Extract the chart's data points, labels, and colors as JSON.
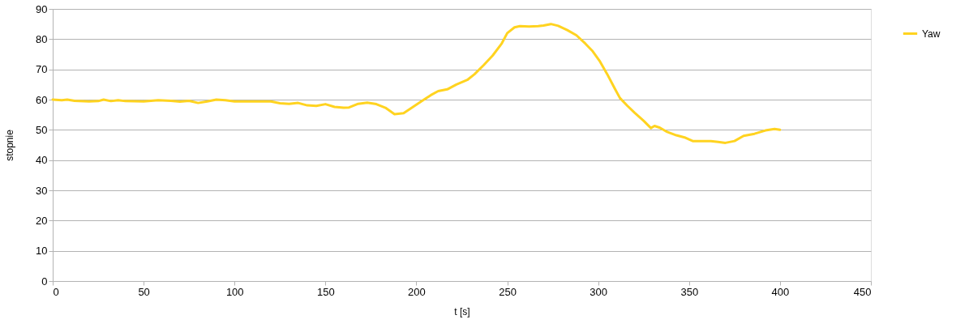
{
  "chart_data": {
    "type": "line",
    "xlabel": "t [s]",
    "ylabel": "stopnie",
    "xlim": [
      0,
      450
    ],
    "xticks": [
      0,
      50,
      100,
      150,
      200,
      250,
      300,
      350,
      400,
      450
    ],
    "ylim": [
      0,
      90
    ],
    "yticks": [
      0,
      10,
      20,
      30,
      40,
      50,
      60,
      70,
      80,
      90
    ],
    "grid": "y",
    "legend": "right",
    "marker": "none",
    "line_style": "solid",
    "x": [
      0,
      5,
      8,
      12,
      20,
      25,
      28,
      32,
      36,
      40,
      50,
      58,
      65,
      70,
      75,
      80,
      85,
      90,
      95,
      100,
      110,
      120,
      125,
      130,
      135,
      140,
      145,
      150,
      155,
      160,
      163,
      168,
      173,
      178,
      183,
      188,
      193,
      198,
      203,
      208,
      212,
      217,
      222,
      228,
      232,
      237,
      242,
      247,
      250,
      254,
      257,
      262,
      267,
      270,
      274,
      278,
      283,
      288,
      293,
      297,
      301,
      305,
      309,
      312,
      316,
      320,
      325,
      329,
      331,
      334,
      338,
      343,
      348,
      352,
      357,
      362,
      366,
      370,
      375,
      380,
      386,
      392,
      397,
      400
    ],
    "series": [
      {
        "name": "Yaw",
        "color": "#ffd320",
        "values": [
          60,
          59.8,
          60,
          59.6,
          59.4,
          59.5,
          60,
          59.5,
          59.8,
          59.5,
          59.4,
          59.8,
          59.6,
          59.3,
          59.6,
          58.9,
          59.4,
          60,
          59.8,
          59.4,
          59.4,
          59.4,
          58.8,
          58.6,
          58.9,
          58.1,
          57.9,
          58.5,
          57.6,
          57.3,
          57.4,
          58.6,
          59,
          58.5,
          57.3,
          55.2,
          55.5,
          57.5,
          59.5,
          61.5,
          62.8,
          63.4,
          65,
          66.5,
          68.4,
          71.4,
          74.6,
          78.6,
          82,
          83.9,
          84.3,
          84.2,
          84.3,
          84.5,
          85,
          84.4,
          83,
          81.3,
          78.5,
          76,
          72.6,
          68.4,
          63.8,
          60.5,
          58,
          55.7,
          53,
          50.6,
          51.3,
          50.7,
          49.3,
          48.2,
          47.4,
          46.3,
          46.3,
          46.3,
          46,
          45.7,
          46.3,
          48,
          48.7,
          49.8,
          50.3,
          50
        ]
      }
    ]
  }
}
